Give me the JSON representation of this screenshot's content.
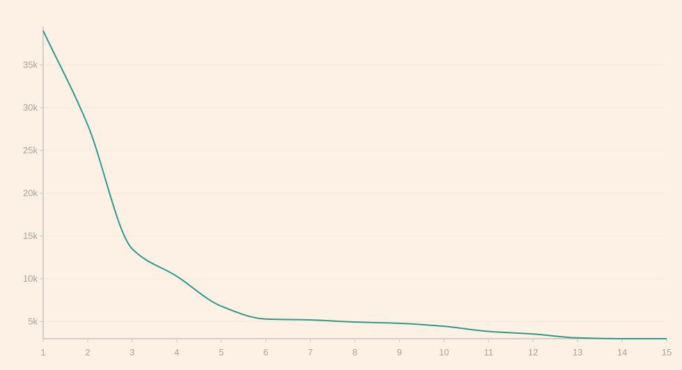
{
  "colors": {
    "background": "#fdf1e6",
    "series": "#2b9a88",
    "axis": "#c9c3bd",
    "grid": "#f6e9dd",
    "tick_label": "#a7a29c"
  },
  "chart_data": {
    "type": "line",
    "title": "",
    "xlabel": "",
    "ylabel": "",
    "xlim": [
      1,
      15
    ],
    "ylim": [
      3000,
      39500
    ],
    "x_ticks": [
      1,
      2,
      3,
      4,
      5,
      6,
      7,
      8,
      9,
      10,
      11,
      12,
      13,
      14,
      15
    ],
    "x_tick_labels": [
      "1",
      "2",
      "3",
      "4",
      "5",
      "6",
      "7",
      "8",
      "9",
      "10",
      "11",
      "12",
      "13",
      "14",
      "15"
    ],
    "y_ticks": [
      5000,
      10000,
      15000,
      20000,
      25000,
      30000,
      35000
    ],
    "y_tick_labels": [
      "5k",
      "10k",
      "15k",
      "20k",
      "25k",
      "30k",
      "35k"
    ],
    "grid": true,
    "legend": "none",
    "series": [
      {
        "x": [
          1,
          2,
          3,
          4,
          5,
          6,
          7,
          8,
          9,
          10,
          11,
          12,
          13,
          14,
          15
        ],
        "values": [
          39000,
          28000,
          13500,
          10300,
          6800,
          5300,
          5200,
          4950,
          4800,
          4450,
          3850,
          3550,
          3100,
          3000,
          3000
        ]
      }
    ]
  }
}
